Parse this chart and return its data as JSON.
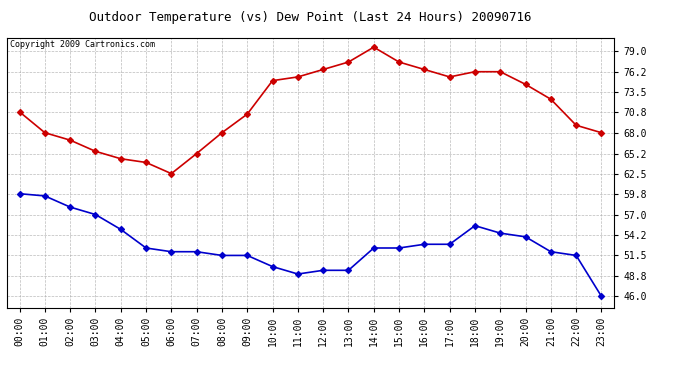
{
  "title": "Outdoor Temperature (vs) Dew Point (Last 24 Hours) 20090716",
  "copyright": "Copyright 2009 Cartronics.com",
  "hours": [
    "00:00",
    "01:00",
    "02:00",
    "03:00",
    "04:00",
    "05:00",
    "06:00",
    "07:00",
    "08:00",
    "09:00",
    "10:00",
    "11:00",
    "12:00",
    "13:00",
    "14:00",
    "15:00",
    "16:00",
    "17:00",
    "18:00",
    "19:00",
    "20:00",
    "21:00",
    "22:00",
    "23:00"
  ],
  "temp": [
    70.8,
    68.0,
    67.0,
    65.5,
    64.5,
    64.0,
    62.5,
    65.2,
    68.0,
    70.5,
    75.0,
    75.5,
    76.5,
    77.5,
    79.5,
    77.5,
    76.5,
    75.5,
    76.2,
    76.2,
    74.5,
    72.5,
    69.0,
    68.0
  ],
  "dew": [
    59.8,
    59.5,
    58.0,
    57.0,
    55.0,
    52.5,
    52.0,
    52.0,
    51.5,
    51.5,
    50.0,
    49.0,
    49.5,
    49.5,
    52.5,
    52.5,
    53.0,
    53.0,
    55.5,
    54.5,
    54.0,
    52.0,
    51.5,
    46.0
  ],
  "temp_color": "#cc0000",
  "dew_color": "#0000cc",
  "background_color": "#ffffff",
  "grid_color": "#aaaaaa",
  "yticks": [
    46.0,
    48.8,
    51.5,
    54.2,
    57.0,
    59.8,
    62.5,
    65.2,
    68.0,
    70.8,
    73.5,
    76.2,
    79.0
  ],
  "ylim": [
    44.5,
    80.8
  ],
  "marker": "D",
  "markersize": 3,
  "linewidth": 1.2,
  "title_fontsize": 9,
  "tick_fontsize": 7,
  "copyright_fontsize": 6
}
